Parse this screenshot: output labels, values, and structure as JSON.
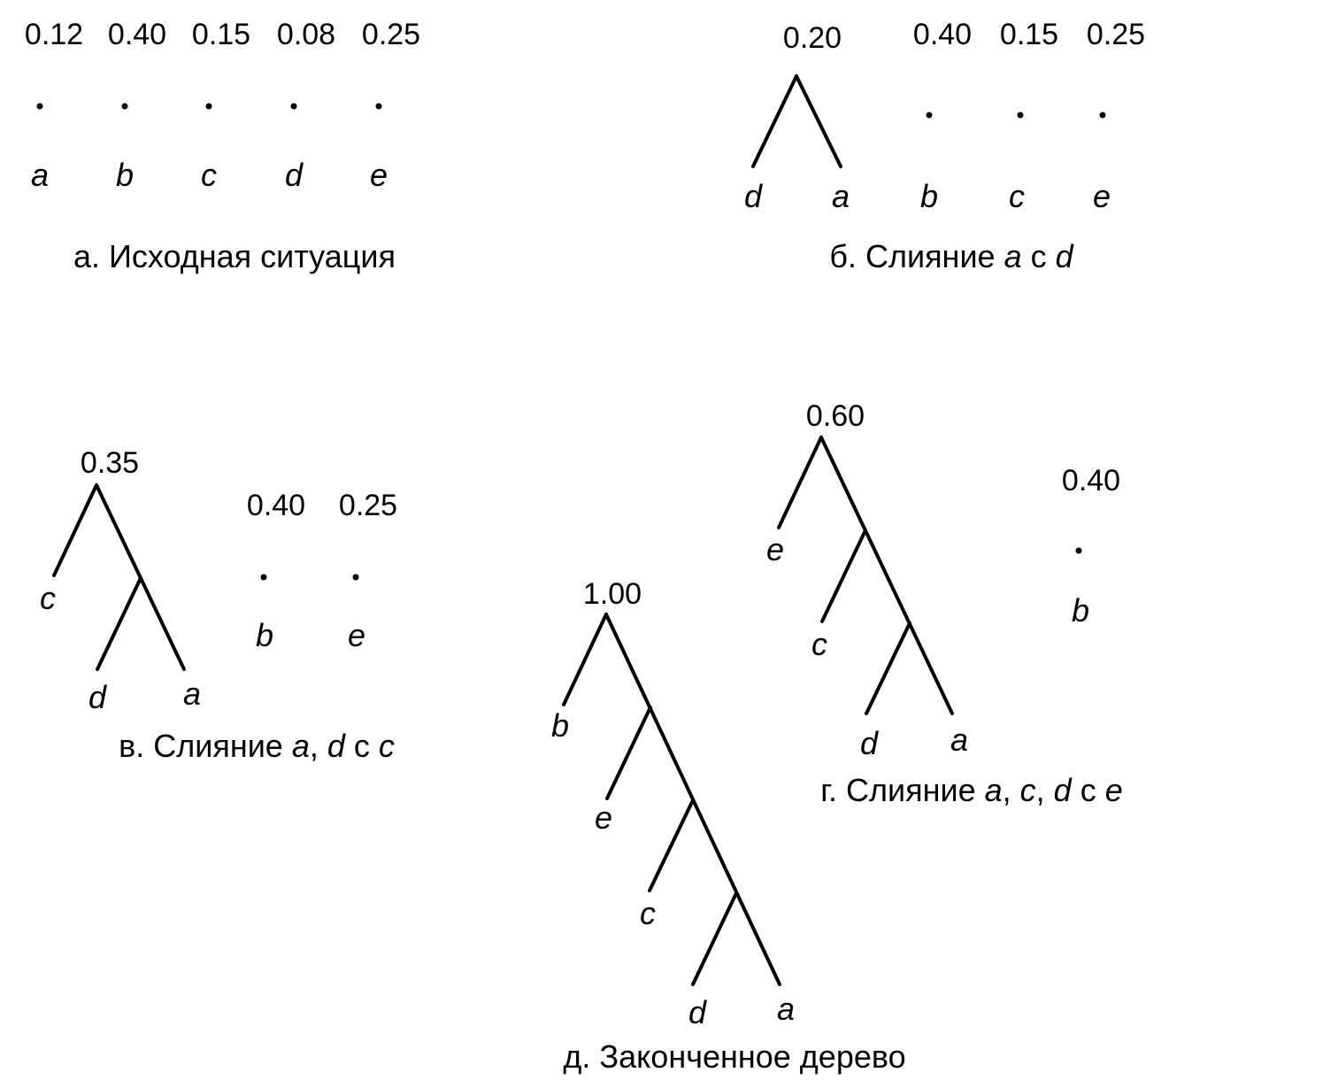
{
  "panels": {
    "a": {
      "weights": [
        "0.12",
        "0.40",
        "0.15",
        "0.08",
        "0.25"
      ],
      "leaves": [
        "a",
        "b",
        "c",
        "d",
        "e"
      ],
      "caption": "а. Исходная ситуация"
    },
    "b": {
      "tree": {
        "weight": "0.20",
        "leaves": [
          "d",
          "a"
        ]
      },
      "weights": [
        "0.40",
        "0.15",
        "0.25"
      ],
      "leaves": [
        "b",
        "c",
        "e"
      ],
      "caption": [
        {
          "text": "б. Слияние ",
          "italic": false
        },
        {
          "text": "a",
          "italic": true
        },
        {
          "text": " с ",
          "italic": false
        },
        {
          "text": "d",
          "italic": true
        }
      ]
    },
    "v": {
      "tree": {
        "weight": "0.35",
        "leaves": [
          "c",
          "d",
          "a"
        ]
      },
      "weights": [
        "0.40",
        "0.25"
      ],
      "leaves": [
        "b",
        "e"
      ],
      "caption": [
        {
          "text": "в. Слияние ",
          "italic": false
        },
        {
          "text": "a",
          "italic": true
        },
        {
          "text": ", ",
          "italic": false
        },
        {
          "text": "d",
          "italic": true
        },
        {
          "text": " с ",
          "italic": false
        },
        {
          "text": "c",
          "italic": true
        }
      ]
    },
    "g": {
      "tree": {
        "weight": "0.60",
        "leaves": [
          "e",
          "c",
          "d",
          "a"
        ]
      },
      "weights": [
        "0.40"
      ],
      "leaves": [
        "b"
      ],
      "caption": [
        {
          "text": "г. Слияние ",
          "italic": false
        },
        {
          "text": "a",
          "italic": true
        },
        {
          "text": ", ",
          "italic": false
        },
        {
          "text": "c",
          "italic": true
        },
        {
          "text": ", ",
          "italic": false
        },
        {
          "text": "d",
          "italic": true
        },
        {
          "text": " с ",
          "italic": false
        },
        {
          "text": "e",
          "italic": true
        }
      ]
    },
    "d": {
      "tree": {
        "weight": "1.00",
        "leaves": [
          "b",
          "e",
          "c",
          "d",
          "a"
        ]
      },
      "caption": "д. Законченное дерево"
    }
  }
}
